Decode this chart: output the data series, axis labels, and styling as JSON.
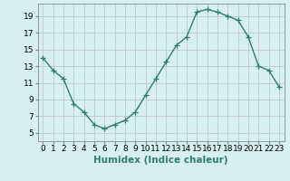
{
  "x": [
    0,
    1,
    2,
    3,
    4,
    5,
    6,
    7,
    8,
    9,
    10,
    11,
    12,
    13,
    14,
    15,
    16,
    17,
    18,
    19,
    20,
    21,
    22,
    23
  ],
  "y": [
    14.0,
    12.5,
    11.5,
    8.5,
    7.5,
    6.0,
    5.5,
    6.0,
    6.5,
    7.5,
    9.5,
    11.5,
    13.5,
    15.5,
    16.5,
    19.5,
    19.8,
    19.5,
    19.0,
    18.5,
    16.5,
    13.0,
    12.5,
    10.5
  ],
  "line_color": "#2e7d6e",
  "marker": "+",
  "marker_size": 4,
  "bg_color": "#d6f0f0",
  "grid_color": "#c0c8c8",
  "xlabel": "Humidex (Indice chaleur)",
  "xlim": [
    -0.5,
    23.5
  ],
  "ylim": [
    4,
    20.5
  ],
  "yticks": [
    5,
    7,
    9,
    11,
    13,
    15,
    17,
    19
  ],
  "xticks": [
    0,
    1,
    2,
    3,
    4,
    5,
    6,
    7,
    8,
    9,
    10,
    11,
    12,
    13,
    14,
    15,
    16,
    17,
    18,
    19,
    20,
    21,
    22,
    23
  ],
  "tick_fontsize": 6.5,
  "xlabel_fontsize": 7.5,
  "line_width": 1.0
}
